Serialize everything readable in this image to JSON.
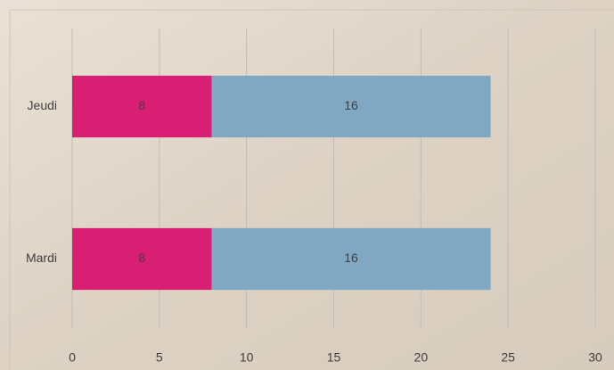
{
  "chart_data": {
    "type": "stacked_barh",
    "categories": [
      "Jeudi",
      "Mardi"
    ],
    "series": [
      {
        "color": "#d81f74",
        "values": [
          8,
          8
        ]
      },
      {
        "color": "#80a8c2",
        "values": [
          16,
          16
        ]
      }
    ],
    "xlim": [
      0,
      30
    ],
    "xticks": [
      0,
      5,
      10,
      15,
      20,
      25,
      30
    ],
    "grid": true
  }
}
